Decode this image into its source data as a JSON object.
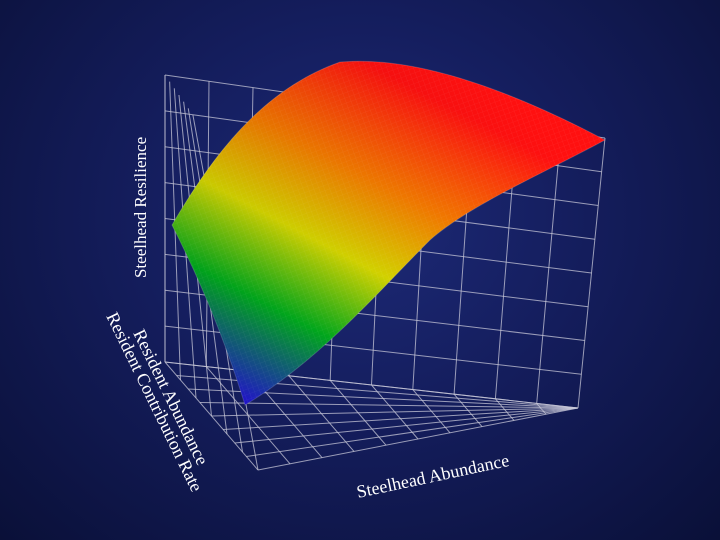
{
  "chart_data": {
    "type": "surface",
    "title": "",
    "zlabel": "Steelhead Resilience",
    "xlabel": "Steelhead Abundance",
    "ylabel_front": "Resident Abundance",
    "ylabel_back": "Resident Contribution Rate",
    "grid": true,
    "colormap": [
      "#2a10ff",
      "#00c020",
      "#e8e800",
      "#ff8000",
      "#ff1010"
    ],
    "surface_shape": "saturating rise along Resident Abundance, slight rise along Steelhead Abundance"
  }
}
